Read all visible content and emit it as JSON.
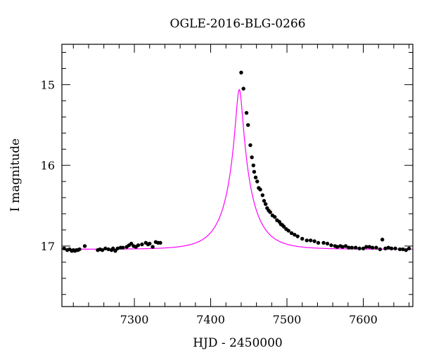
{
  "chart_data": {
    "type": "scatter",
    "title": "OGLE-2016-BLG-0266",
    "xlabel": "HJD - 2450000",
    "ylabel": "I magnitude",
    "xlim": [
      7205,
      7665
    ],
    "ylim": [
      17.75,
      14.5
    ],
    "y_inverted": true,
    "grid": false,
    "legend": "none",
    "x_major_ticks": [
      7300,
      7400,
      7500,
      7600
    ],
    "x_minor_step": 20,
    "y_major_ticks": [
      15,
      16,
      17
    ],
    "y_minor_step": 0.2,
    "x_tick_labels": [
      "7300",
      "7400",
      "7500",
      "7600"
    ],
    "y_tick_labels": [
      "15",
      "16",
      "17"
    ],
    "colors": {
      "model": "#ff00ff",
      "data": "#000000"
    },
    "series": [
      {
        "kind": "points",
        "points": [
          [
            7208,
            17.03
          ],
          [
            7212,
            17.05
          ],
          [
            7215,
            17.04
          ],
          [
            7218,
            17.06
          ],
          [
            7220,
            17.05
          ],
          [
            7222,
            17.06
          ],
          [
            7224,
            17.05
          ],
          [
            7226,
            17.05
          ],
          [
            7228,
            17.04
          ],
          [
            7235,
            17.0
          ],
          [
            7252,
            17.05
          ],
          [
            7255,
            17.04
          ],
          [
            7258,
            17.05
          ],
          [
            7262,
            17.03
          ],
          [
            7266,
            17.04
          ],
          [
            7270,
            17.05
          ],
          [
            7272,
            17.03
          ],
          [
            7275,
            17.06
          ],
          [
            7278,
            17.03
          ],
          [
            7282,
            17.02
          ],
          [
            7285,
            17.02
          ],
          [
            7290,
            17.01
          ],
          [
            7293,
            16.99
          ],
          [
            7296,
            16.97
          ],
          [
            7299,
            17.0
          ],
          [
            7302,
            17.01
          ],
          [
            7305,
            16.99
          ],
          [
            7310,
            16.98
          ],
          [
            7315,
            16.96
          ],
          [
            7318,
            16.98
          ],
          [
            7320,
            16.97
          ],
          [
            7324,
            17.01
          ],
          [
            7328,
            16.95
          ],
          [
            7331,
            16.96
          ],
          [
            7334,
            16.96
          ],
          [
            7440,
            14.85
          ],
          [
            7443,
            15.05
          ],
          [
            7447,
            15.35
          ],
          [
            7449,
            15.5
          ],
          [
            7452,
            15.75
          ],
          [
            7454,
            15.9
          ],
          [
            7456,
            16.0
          ],
          [
            7457,
            16.08
          ],
          [
            7459,
            16.15
          ],
          [
            7461,
            16.2
          ],
          [
            7463,
            16.28
          ],
          [
            7465,
            16.3
          ],
          [
            7468,
            16.37
          ],
          [
            7470,
            16.44
          ],
          [
            7472,
            16.48
          ],
          [
            7474,
            16.53
          ],
          [
            7476,
            16.56
          ],
          [
            7478,
            16.58
          ],
          [
            7481,
            16.62
          ],
          [
            7484,
            16.64
          ],
          [
            7487,
            16.68
          ],
          [
            7490,
            16.7
          ],
          [
            7492,
            16.73
          ],
          [
            7494,
            16.74
          ],
          [
            7496,
            16.76
          ],
          [
            7499,
            16.79
          ],
          [
            7502,
            16.81
          ],
          [
            7506,
            16.84
          ],
          [
            7510,
            16.86
          ],
          [
            7514,
            16.88
          ],
          [
            7520,
            16.91
          ],
          [
            7526,
            16.93
          ],
          [
            7531,
            16.93
          ],
          [
            7536,
            16.94
          ],
          [
            7541,
            16.96
          ],
          [
            7548,
            16.96
          ],
          [
            7553,
            16.97
          ],
          [
            7558,
            16.99
          ],
          [
            7563,
            17.0
          ],
          [
            7566,
            17.01
          ],
          [
            7570,
            17.0
          ],
          [
            7573,
            17.01
          ],
          [
            7577,
            17.0
          ],
          [
            7581,
            17.02
          ],
          [
            7585,
            17.02
          ],
          [
            7590,
            17.02
          ],
          [
            7595,
            17.03
          ],
          [
            7600,
            17.03
          ],
          [
            7604,
            17.01
          ],
          [
            7608,
            17.01
          ],
          [
            7612,
            17.02
          ],
          [
            7617,
            17.02
          ],
          [
            7622,
            17.04
          ],
          [
            7625,
            16.92
          ],
          [
            7629,
            17.03
          ],
          [
            7633,
            17.02
          ],
          [
            7637,
            17.03
          ],
          [
            7642,
            17.03
          ],
          [
            7648,
            17.04
          ],
          [
            7652,
            17.04
          ],
          [
            7656,
            17.05
          ],
          [
            7660,
            17.03
          ]
        ]
      },
      {
        "kind": "model-curve",
        "type": "line",
        "model_params": {
          "t0": 7437.5,
          "u0": 0.13,
          "tE": 34,
          "baseline_mag": 17.04,
          "blend_ratio": 0.3
        }
      }
    ]
  }
}
